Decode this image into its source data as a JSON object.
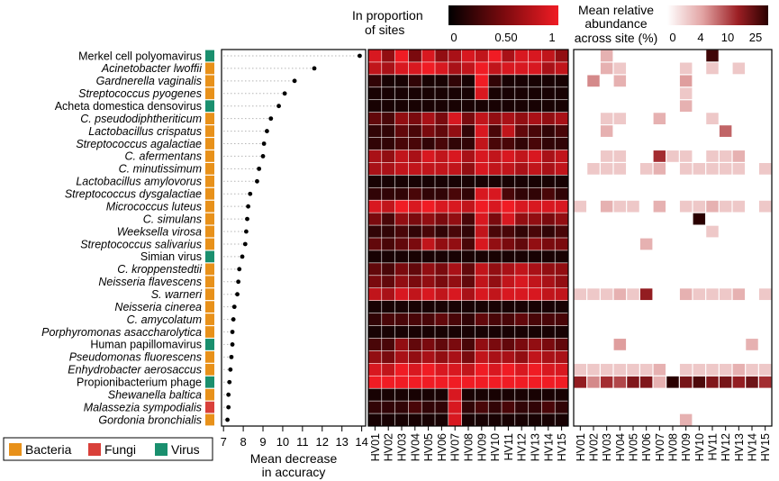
{
  "legend": {
    "bacteria": "Bacteria",
    "fungi": "Fungi",
    "virus": "Virus",
    "colors": {
      "bacteria": "#E8911A",
      "fungi": "#D9403A",
      "virus": "#1A8F6E"
    }
  },
  "colorbar_proportion": {
    "title_line1": "In proportion",
    "title_line2": "of sites",
    "ticks": [
      "0",
      "0.50",
      "1"
    ]
  },
  "colorbar_abundance": {
    "title_line1": "Mean relative",
    "title_line2": "abundance",
    "title_line3": "across site (%)",
    "ticks": [
      "0",
      "4",
      "10",
      "25"
    ]
  },
  "chart_data": [
    {
      "type": "scatter",
      "xlabel_line1": "Mean decrease",
      "xlabel_line2": "in accuracy",
      "xlim": [
        7,
        14
      ],
      "xticks": [
        "7",
        "8",
        "9",
        "10",
        "11",
        "12",
        "13",
        "14"
      ],
      "categories": [
        "Merkel cell polyomavirus",
        "Acinetobacter lwoffii",
        "Gardnerella vaginalis",
        "Streptococcus pyogenes",
        "Acheta domestica densovirus",
        "C. pseudodiphtheriticum",
        "Lactobacillus crispatus",
        "Streptococcus agalactiae",
        "C. afermentans",
        "C. minutissimum",
        "Lactobacillus amylovorus",
        "Streptococcus dysgalactiae",
        "Micrococcus luteus",
        "C. simulans",
        "Weeksella virosa",
        "Streptococcus salivarius",
        "Simian virus",
        "C. kroppenstedtii",
        "Neisseria flavescens",
        "S. warneri",
        "Neisseria cinerea",
        "C. amycolatum",
        "Porphyromonas asaccharolytica",
        "Human papillomavirus",
        "Pseudomonas fluorescens",
        "Enhydrobacter aerosaccus",
        "Propionibacterium phage",
        "Shewanella baltica",
        "Malassezia sympodialis",
        "Gordonia bronchialis"
      ],
      "kingdom": [
        "Virus",
        "Bacteria",
        "Bacteria",
        "Bacteria",
        "Virus",
        "Bacteria",
        "Bacteria",
        "Bacteria",
        "Bacteria",
        "Bacteria",
        "Bacteria",
        "Bacteria",
        "Bacteria",
        "Bacteria",
        "Bacteria",
        "Bacteria",
        "Virus",
        "Bacteria",
        "Bacteria",
        "Bacteria",
        "Bacteria",
        "Bacteria",
        "Bacteria",
        "Virus",
        "Bacteria",
        "Bacteria",
        "Virus",
        "Bacteria",
        "Fungi",
        "Bacteria"
      ],
      "values": [
        13.9,
        11.6,
        10.6,
        10.1,
        9.8,
        9.4,
        9.2,
        9.05,
        9.0,
        8.8,
        8.7,
        8.35,
        8.25,
        8.2,
        8.15,
        8.1,
        7.95,
        7.8,
        7.75,
        7.7,
        7.55,
        7.5,
        7.45,
        7.45,
        7.4,
        7.35,
        7.3,
        7.25,
        7.25,
        7.2
      ]
    },
    {
      "type": "heatmap",
      "title": "In proportion of sites",
      "x": [
        "HV01",
        "HV02",
        "HV03",
        "HV04",
        "HV05",
        "HV06",
        "HV07",
        "HV08",
        "HV09",
        "HV10",
        "HV11",
        "HV12",
        "HV13",
        "HV14",
        "HV15"
      ],
      "range": [
        0,
        1
      ],
      "values": [
        [
          0.9,
          0.6,
          1.0,
          0.5,
          0.9,
          0.6,
          0.7,
          0.9,
          0.8,
          1.0,
          0.7,
          0.9,
          0.9,
          0.8,
          0.6
        ],
        [
          0.8,
          0.7,
          0.9,
          0.9,
          1.0,
          0.9,
          0.7,
          0.8,
          1.0,
          0.8,
          0.9,
          0.9,
          0.9,
          0.7,
          0.8
        ],
        [
          0.2,
          0.1,
          0.1,
          0.2,
          0.1,
          0.1,
          0.2,
          0.1,
          1.0,
          0.2,
          0.1,
          0.1,
          0.1,
          0.1,
          0.1
        ],
        [
          0.1,
          0.1,
          0.1,
          0.1,
          0.1,
          0.1,
          0.1,
          0.1,
          0.9,
          0.1,
          0.1,
          0.1,
          0.1,
          0.1,
          0.1
        ],
        [
          0.1,
          0.1,
          0.1,
          0.1,
          0.1,
          0.1,
          0.1,
          0.1,
          0.1,
          0.1,
          0.1,
          0.1,
          0.1,
          0.1,
          0.1
        ],
        [
          0.4,
          0.3,
          0.6,
          0.5,
          0.7,
          0.5,
          0.9,
          0.5,
          0.8,
          0.6,
          0.7,
          0.6,
          0.7,
          0.6,
          0.7
        ],
        [
          0.2,
          0.2,
          0.4,
          0.3,
          0.5,
          0.4,
          0.6,
          0.2,
          0.9,
          0.3,
          0.8,
          0.4,
          0.3,
          0.2,
          0.3
        ],
        [
          0.2,
          0.2,
          0.3,
          0.3,
          0.2,
          0.3,
          0.2,
          0.2,
          0.8,
          0.3,
          0.3,
          0.2,
          0.3,
          0.2,
          0.2
        ],
        [
          0.7,
          0.6,
          0.8,
          0.7,
          0.9,
          0.8,
          0.9,
          0.7,
          0.9,
          0.8,
          0.9,
          0.8,
          0.9,
          0.7,
          0.8
        ],
        [
          0.7,
          0.7,
          0.8,
          0.8,
          0.8,
          0.8,
          0.8,
          0.6,
          0.9,
          0.8,
          0.8,
          0.7,
          0.8,
          0.7,
          0.8
        ],
        [
          0.1,
          0.1,
          0.1,
          0.1,
          0.1,
          0.1,
          0.1,
          0.1,
          0.1,
          0.1,
          0.1,
          0.1,
          0.1,
          0.1,
          0.1
        ],
        [
          0.2,
          0.2,
          0.2,
          0.3,
          0.2,
          0.2,
          0.3,
          0.2,
          0.9,
          0.9,
          0.3,
          0.2,
          0.2,
          0.3,
          0.2
        ],
        [
          0.9,
          0.8,
          1.0,
          0.9,
          1.0,
          0.9,
          0.9,
          0.8,
          1.0,
          0.9,
          1.0,
          0.9,
          0.9,
          0.9,
          0.9
        ],
        [
          0.5,
          0.3,
          0.6,
          0.5,
          0.6,
          0.5,
          0.6,
          0.3,
          0.9,
          0.5,
          0.9,
          0.6,
          0.6,
          0.5,
          0.6
        ],
        [
          0.2,
          0.2,
          0.3,
          0.2,
          0.3,
          0.2,
          0.3,
          0.2,
          0.8,
          0.3,
          0.3,
          0.2,
          0.3,
          0.2,
          0.3
        ],
        [
          0.4,
          0.3,
          0.4,
          0.5,
          0.8,
          0.6,
          0.6,
          0.3,
          0.9,
          0.6,
          0.5,
          0.4,
          0.6,
          0.5,
          0.5
        ],
        [
          0.1,
          0.1,
          0.1,
          0.1,
          0.1,
          0.1,
          0.1,
          0.1,
          0.1,
          0.1,
          0.1,
          0.1,
          0.1,
          0.1,
          0.1
        ],
        [
          0.4,
          0.3,
          0.5,
          0.4,
          0.6,
          0.5,
          0.7,
          0.4,
          0.8,
          0.6,
          0.7,
          0.8,
          0.7,
          0.6,
          0.6
        ],
        [
          0.5,
          0.4,
          0.6,
          0.5,
          0.6,
          0.5,
          0.6,
          0.4,
          0.8,
          0.6,
          0.8,
          0.9,
          0.8,
          0.7,
          0.6
        ],
        [
          0.8,
          0.7,
          0.9,
          0.8,
          0.9,
          0.8,
          0.9,
          0.7,
          0.9,
          0.8,
          0.9,
          0.9,
          0.9,
          0.8,
          0.8
        ],
        [
          0.1,
          0.1,
          0.1,
          0.1,
          0.1,
          0.1,
          0.1,
          0.1,
          0.1,
          0.1,
          0.1,
          0.1,
          0.1,
          0.1,
          0.1
        ],
        [
          0.2,
          0.3,
          0.3,
          0.3,
          0.3,
          0.4,
          0.3,
          0.2,
          0.4,
          0.3,
          0.3,
          0.4,
          0.3,
          0.3,
          0.3
        ],
        [
          0.1,
          0.1,
          0.1,
          0.1,
          0.1,
          0.1,
          0.1,
          0.1,
          0.1,
          0.1,
          0.1,
          0.1,
          0.1,
          0.1,
          0.1
        ],
        [
          0.3,
          0.3,
          0.6,
          0.4,
          0.5,
          0.4,
          0.5,
          0.3,
          0.6,
          0.5,
          0.4,
          0.5,
          0.6,
          0.5,
          0.4
        ],
        [
          0.6,
          0.5,
          0.7,
          0.6,
          0.7,
          0.6,
          0.7,
          0.5,
          0.8,
          0.7,
          0.7,
          0.6,
          0.8,
          0.7,
          0.7
        ],
        [
          0.9,
          0.8,
          1.0,
          0.9,
          1.0,
          0.9,
          0.9,
          0.8,
          1.0,
          0.9,
          1.0,
          0.9,
          1.0,
          0.9,
          0.9
        ],
        [
          1.0,
          1.0,
          1.0,
          1.0,
          1.0,
          1.0,
          1.0,
          1.0,
          1.0,
          1.0,
          1.0,
          1.0,
          1.0,
          1.0,
          1.0
        ],
        [
          0.1,
          0.1,
          0.1,
          0.1,
          0.1,
          0.1,
          0.9,
          0.1,
          0.1,
          0.1,
          0.1,
          0.1,
          0.1,
          0.1,
          0.1
        ],
        [
          0.2,
          0.2,
          0.2,
          0.3,
          0.2,
          0.2,
          0.9,
          0.2,
          0.3,
          0.2,
          0.3,
          0.2,
          0.2,
          0.3,
          0.2
        ],
        [
          0.1,
          0.1,
          0.1,
          0.1,
          0.1,
          0.1,
          0.9,
          0.1,
          0.1,
          0.1,
          0.1,
          0.1,
          0.1,
          0.1,
          0.1
        ]
      ]
    },
    {
      "type": "heatmap",
      "title": "Mean relative abundance across site (%)",
      "x": [
        "HV01",
        "HV02",
        "HV03",
        "HV04",
        "HV05",
        "HV06",
        "HV07",
        "HV08",
        "HV09",
        "HV10",
        "HV11",
        "HV12",
        "HV13",
        "HV14",
        "HV15"
      ],
      "range": [
        0,
        25
      ],
      "values": [
        [
          0,
          0,
          2,
          0,
          0,
          0,
          0,
          0,
          0,
          0,
          22,
          0,
          0,
          0,
          0
        ],
        [
          0,
          0,
          2,
          1,
          0,
          0,
          0,
          0,
          1,
          0,
          1,
          0,
          1,
          0,
          0
        ],
        [
          0,
          4,
          0,
          2,
          0,
          0,
          0,
          0,
          3,
          0,
          0,
          0,
          0,
          0,
          0
        ],
        [
          0,
          0,
          0,
          0,
          0,
          0,
          0,
          0,
          1,
          0,
          0,
          0,
          0,
          0,
          0
        ],
        [
          0,
          0,
          0,
          0,
          0,
          0,
          0,
          0,
          2,
          0,
          0,
          0,
          0,
          0,
          0
        ],
        [
          0,
          0,
          1,
          1,
          0,
          0,
          2,
          0,
          0,
          0,
          1,
          0,
          0,
          0,
          0
        ],
        [
          0,
          0,
          2,
          0,
          0,
          0,
          0,
          0,
          0,
          0,
          0,
          6,
          0,
          0,
          0
        ],
        [
          0,
          0,
          0,
          0,
          0,
          0,
          0,
          0,
          0,
          0,
          0,
          0,
          0,
          0,
          0
        ],
        [
          0,
          0,
          1,
          1,
          0,
          0,
          10,
          1,
          1,
          0,
          1,
          1,
          2,
          0,
          0
        ],
        [
          0,
          1,
          1,
          1,
          0,
          1,
          2,
          0,
          1,
          1,
          1,
          1,
          1,
          0,
          1
        ],
        [
          0,
          0,
          0,
          0,
          0,
          0,
          0,
          0,
          0,
          0,
          0,
          0,
          0,
          0,
          0
        ],
        [
          0,
          0,
          0,
          0,
          0,
          0,
          0,
          0,
          0,
          0,
          0,
          0,
          0,
          0,
          0
        ],
        [
          1,
          0,
          2,
          1,
          1,
          0,
          2,
          0,
          1,
          1,
          2,
          1,
          1,
          0,
          1
        ],
        [
          0,
          0,
          0,
          0,
          0,
          0,
          0,
          0,
          0,
          25,
          0,
          0,
          0,
          0,
          0
        ],
        [
          0,
          0,
          0,
          0,
          0,
          0,
          0,
          0,
          0,
          0,
          1,
          0,
          0,
          0,
          0
        ],
        [
          0,
          0,
          0,
          0,
          0,
          2,
          0,
          0,
          0,
          0,
          0,
          0,
          0,
          0,
          0
        ],
        [
          0,
          0,
          0,
          0,
          0,
          0,
          0,
          0,
          0,
          0,
          0,
          0,
          0,
          0,
          0
        ],
        [
          0,
          0,
          0,
          0,
          0,
          0,
          0,
          0,
          0,
          0,
          0,
          0,
          0,
          0,
          0
        ],
        [
          0,
          0,
          0,
          0,
          0,
          0,
          0,
          0,
          0,
          0,
          0,
          0,
          0,
          0,
          0
        ],
        [
          1,
          1,
          1,
          2,
          1,
          12,
          0,
          0,
          2,
          1,
          1,
          1,
          2,
          0,
          1
        ],
        [
          0,
          0,
          0,
          0,
          0,
          0,
          0,
          0,
          0,
          0,
          0,
          0,
          0,
          0,
          0
        ],
        [
          0,
          0,
          0,
          0,
          0,
          0,
          0,
          0,
          0,
          0,
          0,
          0,
          0,
          0,
          0
        ],
        [
          0,
          0,
          0,
          0,
          0,
          0,
          0,
          0,
          0,
          0,
          0,
          0,
          0,
          0,
          0
        ],
        [
          0,
          0,
          0,
          3,
          0,
          0,
          0,
          0,
          0,
          0,
          0,
          0,
          0,
          2,
          0
        ],
        [
          0,
          0,
          0,
          0,
          0,
          0,
          0,
          0,
          0,
          0,
          0,
          0,
          0,
          0,
          0
        ],
        [
          1,
          1,
          1,
          1,
          1,
          1,
          2,
          0,
          1,
          1,
          1,
          1,
          2,
          1,
          1
        ],
        [
          12,
          4,
          10,
          8,
          14,
          14,
          2,
          25,
          15,
          20,
          14,
          15,
          12,
          16,
          10
        ],
        [
          0,
          0,
          0,
          0,
          0,
          0,
          0,
          0,
          0,
          0,
          0,
          0,
          0,
          0,
          0
        ],
        [
          0,
          0,
          0,
          0,
          0,
          0,
          0,
          0,
          0,
          0,
          0,
          0,
          0,
          0,
          0
        ],
        [
          0,
          0,
          0,
          0,
          0,
          0,
          0,
          0,
          2,
          0,
          0,
          0,
          0,
          0,
          0
        ]
      ]
    }
  ]
}
